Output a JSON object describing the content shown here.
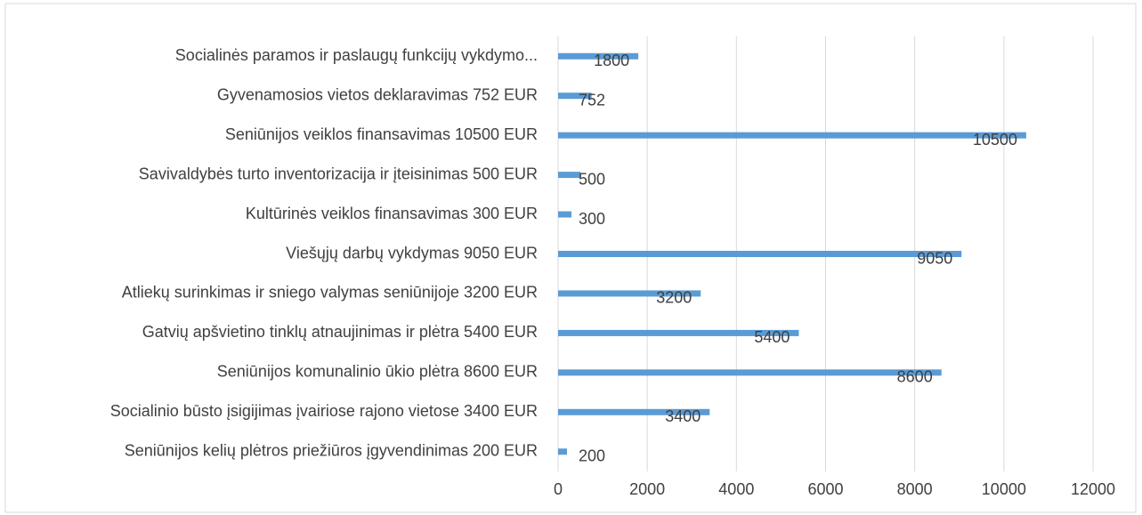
{
  "chart_data": {
    "type": "bar",
    "orientation": "horizontal",
    "categories": [
      "Socialinės paramos ir paslaugų funkcijų vykdymo...",
      "Gyvenamosios vietos deklaravimas 752 EUR",
      "Seniūnijos veiklos finansavimas 10500 EUR",
      "Savivaldybės turto inventorizacija ir įteisinimas 500 EUR",
      "Kultūrinės veiklos finansavimas 300 EUR",
      "Viešųjų darbų vykdymas 9050 EUR",
      "Atliekų surinkimas ir sniego valymas seniūnijoje 3200 EUR",
      "Gatvių apšvietino tinklų atnaujinimas ir plėtra 5400 EUR",
      "Seniūnijos komunalinio ūkio plėtra 8600 EUR",
      "Socialinio būsto įsigijimas įvairiose rajono vietose 3400 EUR",
      "Seniūnijos kelių plėtros priežiūros įgyvendinimas 200 EUR"
    ],
    "values": [
      1800,
      752,
      10500,
      500,
      300,
      9050,
      3200,
      5400,
      8600,
      3400,
      200
    ],
    "color": "#5b9bd5",
    "xlim": [
      0,
      12000
    ],
    "xticks": [
      0,
      2000,
      4000,
      6000,
      8000,
      10000,
      12000
    ],
    "grid": true
  }
}
